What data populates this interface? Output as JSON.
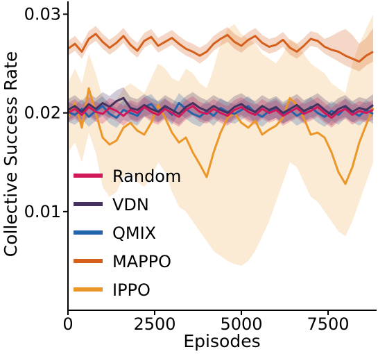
{
  "chart_data": {
    "type": "line",
    "xlabel": "Episodes",
    "ylabel": "Collective Success Rate",
    "xlim": [
      0,
      8900
    ],
    "ylim": [
      0,
      0.0313
    ],
    "x_ticks": [
      0,
      2500,
      5000,
      7500
    ],
    "x_tick_labels": [
      "0",
      "2500",
      "5000",
      "7500"
    ],
    "y_ticks": [
      0.01,
      0.02,
      0.03
    ],
    "y_tick_labels": [
      "0.01",
      "0.02",
      "0.03"
    ],
    "grid": false,
    "legend_position": "left",
    "x": [
      0,
      200,
      400,
      600,
      800,
      1000,
      1200,
      1400,
      1600,
      1800,
      2000,
      2200,
      2400,
      2600,
      2800,
      3000,
      3200,
      3400,
      3600,
      3800,
      4000,
      4200,
      4400,
      4600,
      4800,
      5000,
      5200,
      5400,
      5600,
      5800,
      6000,
      6200,
      6400,
      6600,
      6800,
      7000,
      7200,
      7400,
      7600,
      7800,
      8000,
      8200,
      8400,
      8600,
      8800
    ],
    "series": [
      {
        "name": "Random",
        "color": "#d1185a",
        "values": [
          0.02,
          0.0204,
          0.0198,
          0.0206,
          0.0201,
          0.0199,
          0.0205,
          0.0202,
          0.0197,
          0.0203,
          0.02,
          0.0206,
          0.0201,
          0.0198,
          0.0204,
          0.02,
          0.0196,
          0.0203,
          0.0207,
          0.0201,
          0.0199,
          0.0204,
          0.02,
          0.0197,
          0.0203,
          0.0206,
          0.0201,
          0.0198,
          0.0204,
          0.02,
          0.0203,
          0.0197,
          0.0201,
          0.0205,
          0.0199,
          0.0202,
          0.0206,
          0.02,
          0.0195,
          0.0201,
          0.0204,
          0.0198,
          0.0202,
          0.02,
          0.0203
        ],
        "lower": [
          0.019,
          0.0194,
          0.0188,
          0.0196,
          0.0191,
          0.0189,
          0.0195,
          0.0192,
          0.0187,
          0.0193,
          0.019,
          0.0196,
          0.0191,
          0.0188,
          0.0194,
          0.019,
          0.0186,
          0.0193,
          0.0197,
          0.0191,
          0.0189,
          0.0194,
          0.019,
          0.0187,
          0.0193,
          0.0196,
          0.0191,
          0.0188,
          0.0194,
          0.019,
          0.0193,
          0.0187,
          0.0191,
          0.0195,
          0.0189,
          0.0192,
          0.0196,
          0.019,
          0.0185,
          0.0191,
          0.0194,
          0.0188,
          0.0192,
          0.019,
          0.0193
        ],
        "upper": [
          0.021,
          0.0214,
          0.0208,
          0.0216,
          0.0211,
          0.0209,
          0.0215,
          0.0212,
          0.0207,
          0.0213,
          0.021,
          0.0216,
          0.0211,
          0.0208,
          0.0214,
          0.021,
          0.0206,
          0.0213,
          0.0217,
          0.0211,
          0.0209,
          0.0214,
          0.021,
          0.0207,
          0.0213,
          0.0216,
          0.0211,
          0.0208,
          0.0214,
          0.021,
          0.0213,
          0.0207,
          0.0211,
          0.0215,
          0.0209,
          0.0212,
          0.0216,
          0.021,
          0.0205,
          0.0211,
          0.0214,
          0.0208,
          0.0212,
          0.021,
          0.0213
        ]
      },
      {
        "name": "VDN",
        "color": "#45315d",
        "values": [
          0.0203,
          0.0207,
          0.0201,
          0.0209,
          0.0204,
          0.021,
          0.0206,
          0.0212,
          0.0215,
          0.0205,
          0.0203,
          0.0208,
          0.0204,
          0.0201,
          0.0207,
          0.0203,
          0.0199,
          0.0206,
          0.021,
          0.0205,
          0.0202,
          0.0207,
          0.0203,
          0.02,
          0.0206,
          0.0209,
          0.0204,
          0.0201,
          0.0207,
          0.0203,
          0.0206,
          0.02,
          0.0204,
          0.0208,
          0.0202,
          0.0205,
          0.0209,
          0.0203,
          0.0198,
          0.0204,
          0.0207,
          0.0201,
          0.0205,
          0.0203,
          0.0208
        ],
        "lower": [
          0.0192,
          0.0196,
          0.019,
          0.0198,
          0.0193,
          0.0199,
          0.0195,
          0.0201,
          0.0204,
          0.0194,
          0.0192,
          0.0197,
          0.0193,
          0.019,
          0.0196,
          0.0192,
          0.0188,
          0.0195,
          0.0199,
          0.0194,
          0.0191,
          0.0196,
          0.0192,
          0.0189,
          0.0195,
          0.0198,
          0.0193,
          0.019,
          0.0196,
          0.0192,
          0.0195,
          0.0189,
          0.0193,
          0.0197,
          0.0191,
          0.0194,
          0.0198,
          0.0192,
          0.0187,
          0.0193,
          0.0196,
          0.019,
          0.0194,
          0.0192,
          0.0197
        ],
        "upper": [
          0.0214,
          0.0218,
          0.0212,
          0.022,
          0.0215,
          0.0221,
          0.0217,
          0.0223,
          0.0226,
          0.0216,
          0.0214,
          0.0219,
          0.0215,
          0.0212,
          0.0218,
          0.0214,
          0.021,
          0.0217,
          0.0221,
          0.0216,
          0.0213,
          0.0218,
          0.0214,
          0.0211,
          0.0217,
          0.022,
          0.0215,
          0.0212,
          0.0218,
          0.0214,
          0.0217,
          0.0211,
          0.0215,
          0.0219,
          0.0213,
          0.0216,
          0.022,
          0.0214,
          0.0209,
          0.0215,
          0.0218,
          0.0212,
          0.0216,
          0.0214,
          0.0219
        ]
      },
      {
        "name": "QMIX",
        "color": "#2364aa",
        "values": [
          0.0201,
          0.0198,
          0.0204,
          0.0196,
          0.0202,
          0.0207,
          0.0199,
          0.0195,
          0.0203,
          0.02,
          0.0197,
          0.0206,
          0.0209,
          0.0201,
          0.0205,
          0.0198,
          0.021,
          0.0204,
          0.0199,
          0.0196,
          0.0202,
          0.0197,
          0.0205,
          0.0201,
          0.0199,
          0.0203,
          0.0207,
          0.02,
          0.0196,
          0.0202,
          0.0205,
          0.0199,
          0.0203,
          0.0197,
          0.0201,
          0.0206,
          0.02,
          0.0196,
          0.0202,
          0.0198,
          0.0205,
          0.0201,
          0.0197,
          0.0203,
          0.0199
        ],
        "lower": [
          0.0191,
          0.0188,
          0.0194,
          0.0186,
          0.0192,
          0.0197,
          0.0189,
          0.0185,
          0.0193,
          0.019,
          0.0187,
          0.0196,
          0.0199,
          0.0191,
          0.0195,
          0.0188,
          0.02,
          0.0194,
          0.0189,
          0.0186,
          0.0192,
          0.0187,
          0.0195,
          0.0191,
          0.0189,
          0.0193,
          0.0197,
          0.019,
          0.0186,
          0.0192,
          0.0195,
          0.0189,
          0.0193,
          0.0187,
          0.0191,
          0.0196,
          0.019,
          0.0186,
          0.0192,
          0.0188,
          0.0195,
          0.0191,
          0.0187,
          0.0193,
          0.0189
        ],
        "upper": [
          0.0211,
          0.0208,
          0.0214,
          0.0206,
          0.0212,
          0.0217,
          0.0209,
          0.0205,
          0.0213,
          0.021,
          0.0207,
          0.0216,
          0.0219,
          0.0211,
          0.0215,
          0.0208,
          0.022,
          0.0214,
          0.0209,
          0.0206,
          0.0212,
          0.0207,
          0.0215,
          0.0211,
          0.0209,
          0.0213,
          0.0217,
          0.021,
          0.0206,
          0.0212,
          0.0215,
          0.0209,
          0.0213,
          0.0207,
          0.0211,
          0.0216,
          0.021,
          0.0206,
          0.0212,
          0.0208,
          0.0215,
          0.0211,
          0.0207,
          0.0213,
          0.0209
        ]
      },
      {
        "name": "MAPPO",
        "color": "#d4601c",
        "values": [
          0.0265,
          0.027,
          0.0262,
          0.0275,
          0.028,
          0.0272,
          0.0266,
          0.0271,
          0.0278,
          0.0269,
          0.0263,
          0.0273,
          0.0277,
          0.0268,
          0.0272,
          0.0276,
          0.027,
          0.0265,
          0.0262,
          0.0258,
          0.0262,
          0.027,
          0.0275,
          0.0279,
          0.0272,
          0.0268,
          0.0274,
          0.0278,
          0.0271,
          0.0267,
          0.0269,
          0.0274,
          0.0266,
          0.0262,
          0.0268,
          0.0275,
          0.0273,
          0.0267,
          0.0264,
          0.0262,
          0.0258,
          0.0255,
          0.0252,
          0.0258,
          0.0262
        ],
        "lower": [
          0.0258,
          0.0263,
          0.0255,
          0.0268,
          0.0273,
          0.0265,
          0.0259,
          0.0264,
          0.0271,
          0.0262,
          0.0256,
          0.0266,
          0.027,
          0.0261,
          0.0265,
          0.0269,
          0.0263,
          0.0258,
          0.0255,
          0.025,
          0.0255,
          0.0263,
          0.0268,
          0.0272,
          0.0265,
          0.0261,
          0.0267,
          0.0271,
          0.0264,
          0.026,
          0.0262,
          0.0267,
          0.0259,
          0.0255,
          0.0261,
          0.0268,
          0.0266,
          0.026,
          0.0256,
          0.0252,
          0.0248,
          0.0245,
          0.0242,
          0.0248,
          0.0252
        ],
        "upper": [
          0.0273,
          0.0278,
          0.027,
          0.0283,
          0.0288,
          0.028,
          0.0274,
          0.0279,
          0.0286,
          0.0277,
          0.0271,
          0.0281,
          0.0285,
          0.0276,
          0.028,
          0.0284,
          0.0278,
          0.0273,
          0.027,
          0.0266,
          0.027,
          0.0278,
          0.0283,
          0.0287,
          0.028,
          0.0276,
          0.0282,
          0.0286,
          0.0279,
          0.0275,
          0.0277,
          0.0282,
          0.0274,
          0.027,
          0.0276,
          0.0283,
          0.0281,
          0.0275,
          0.0278,
          0.0282,
          0.0285,
          0.0279,
          0.027,
          0.0276,
          0.0286
        ]
      },
      {
        "name": "IPPO",
        "color": "#ec9628",
        "values": [
          0.0195,
          0.021,
          0.0185,
          0.0225,
          0.02,
          0.0175,
          0.0168,
          0.0172,
          0.0185,
          0.019,
          0.0182,
          0.0178,
          0.019,
          0.0208,
          0.0195,
          0.018,
          0.017,
          0.0175,
          0.016,
          0.0148,
          0.0135,
          0.016,
          0.018,
          0.0195,
          0.02,
          0.019,
          0.0185,
          0.0192,
          0.0178,
          0.0183,
          0.0187,
          0.0195,
          0.0215,
          0.0208,
          0.0195,
          0.0178,
          0.018,
          0.0175,
          0.016,
          0.014,
          0.0128,
          0.0145,
          0.017,
          0.0188,
          0.0205
        ],
        "lower": [
          0.016,
          0.017,
          0.015,
          0.018,
          0.016,
          0.0125,
          0.0115,
          0.012,
          0.0135,
          0.014,
          0.013,
          0.0125,
          0.0135,
          0.015,
          0.014,
          0.012,
          0.0105,
          0.01,
          0.009,
          0.008,
          0.007,
          0.006,
          0.0055,
          0.005,
          0.0047,
          0.0045,
          0.005,
          0.006,
          0.0075,
          0.009,
          0.011,
          0.013,
          0.015,
          0.0145,
          0.013,
          0.0115,
          0.011,
          0.01,
          0.009,
          0.008,
          0.0075,
          0.009,
          0.011,
          0.013,
          0.015
        ],
        "upper": [
          0.023,
          0.0245,
          0.023,
          0.026,
          0.024,
          0.0215,
          0.021,
          0.0212,
          0.0225,
          0.023,
          0.0225,
          0.022,
          0.0235,
          0.025,
          0.0245,
          0.0235,
          0.0232,
          0.0245,
          0.024,
          0.023,
          0.0225,
          0.0245,
          0.027,
          0.0285,
          0.029,
          0.028,
          0.0275,
          0.027,
          0.026,
          0.0255,
          0.025,
          0.026,
          0.0275,
          0.027,
          0.026,
          0.025,
          0.0245,
          0.024,
          0.023,
          0.0225,
          0.022,
          0.025,
          0.027,
          0.0285,
          0.03
        ]
      }
    ]
  }
}
